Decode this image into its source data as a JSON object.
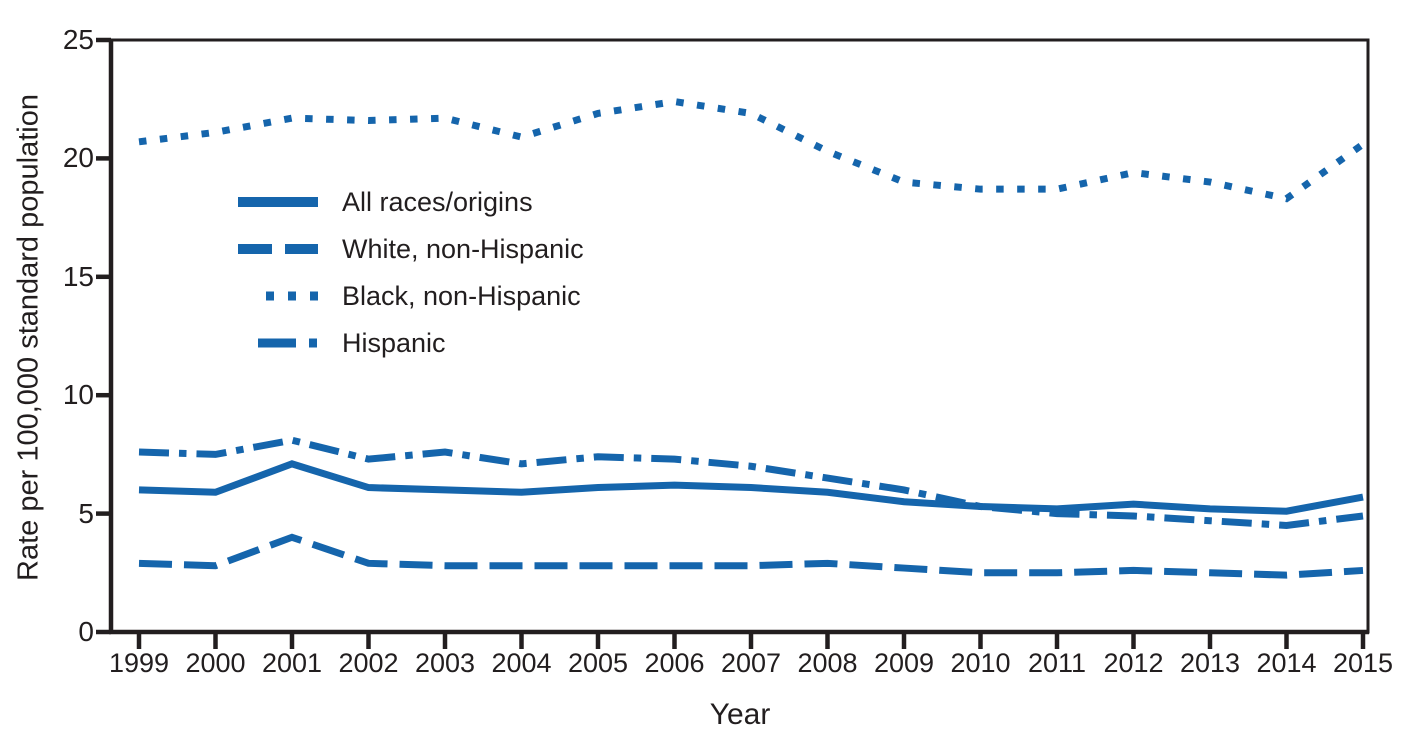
{
  "chart_data": {
    "type": "line",
    "title": "",
    "xlabel": "Year",
    "ylabel": "Rate per 100,000 standard population",
    "x": [
      1999,
      2000,
      2001,
      2002,
      2003,
      2004,
      2005,
      2006,
      2007,
      2008,
      2009,
      2010,
      2011,
      2012,
      2013,
      2014,
      2015
    ],
    "yticks": [
      0,
      5,
      10,
      15,
      20,
      25
    ],
    "ylim": [
      0,
      25
    ],
    "grid": false,
    "legend_position": "inside upper-left",
    "line_color": "#1565AC",
    "axis_color": "#221E1F",
    "series": [
      {
        "name": "All races/origins",
        "style": "solid",
        "values": [
          6.0,
          5.9,
          7.1,
          6.1,
          6.0,
          5.9,
          6.1,
          6.2,
          6.1,
          5.9,
          5.5,
          5.3,
          5.2,
          5.4,
          5.2,
          5.1,
          5.7
        ]
      },
      {
        "name": "White, non-Hispanic",
        "style": "dashed",
        "values": [
          2.9,
          2.8,
          4.0,
          2.9,
          2.8,
          2.8,
          2.8,
          2.8,
          2.8,
          2.9,
          2.7,
          2.5,
          2.5,
          2.6,
          2.5,
          2.4,
          2.6
        ]
      },
      {
        "name": "Black, non-Hispanic",
        "style": "dotted",
        "values": [
          20.7,
          21.1,
          21.7,
          21.6,
          21.7,
          20.9,
          21.9,
          22.4,
          21.9,
          20.3,
          19.0,
          18.7,
          18.7,
          19.4,
          19.0,
          18.3,
          20.6
        ]
      },
      {
        "name": "Hispanic",
        "style": "dashdot",
        "values": [
          7.6,
          7.5,
          8.1,
          7.3,
          7.6,
          7.1,
          7.4,
          7.3,
          7.0,
          6.5,
          6.0,
          5.3,
          5.0,
          4.9,
          4.7,
          4.5,
          4.9
        ]
      }
    ]
  }
}
